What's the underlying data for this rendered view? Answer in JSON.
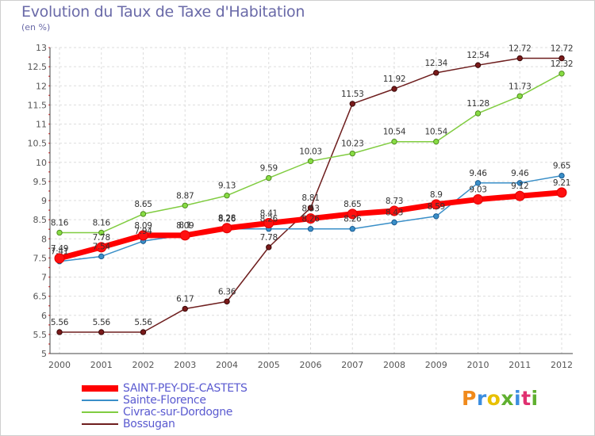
{
  "chart_data": {
    "type": "line",
    "title": "Evolution du Taux de Taxe d'Habitation",
    "ylabel": "(en %)",
    "xlabel": "",
    "x": [
      2000,
      2001,
      2002,
      2003,
      2004,
      2005,
      2006,
      2007,
      2008,
      2009,
      2010,
      2011,
      2012
    ],
    "ylim": [
      5,
      13
    ],
    "yticks": [
      "5",
      "5.5",
      "6",
      "6.5",
      "7",
      "7.5",
      "8",
      "8.5",
      "9",
      "9.5",
      "10",
      "10.5",
      "11",
      "11.5",
      "12",
      "12.5",
      "13"
    ],
    "grid": true,
    "legend": "bottom-left",
    "series": [
      {
        "name": "SAINT-PEY-DE-CASTETS",
        "color": "#ff0000",
        "values": [
          7.49,
          7.78,
          8.09,
          8.09,
          8.28,
          8.41,
          8.53,
          8.65,
          8.73,
          8.9,
          9.03,
          9.12,
          9.21
        ],
        "labels": [
          "7.49",
          "7.78",
          "8.09",
          "8.09",
          "8.28",
          "8.41",
          "8.53",
          "8.65",
          "8.73",
          "8.9",
          "9.03",
          "9.12",
          "9.21"
        ]
      },
      {
        "name": "Sainte-Florence",
        "color": "#3a8fc8",
        "values": [
          7.41,
          7.54,
          7.94,
          8.1,
          8.26,
          8.26,
          8.26,
          8.26,
          8.43,
          8.59,
          9.46,
          9.46,
          9.65
        ],
        "labels": [
          "7.41",
          "7.54",
          "7.94",
          "8.1",
          "8.26",
          "8.26",
          "8.26",
          "8.26",
          "8.43",
          "8.59",
          "9.46",
          "9.46",
          "9.65"
        ]
      },
      {
        "name": "Civrac-sur-Dordogne",
        "color": "#80cc40",
        "values": [
          8.16,
          8.16,
          8.65,
          8.87,
          9.13,
          9.59,
          10.03,
          10.23,
          10.54,
          10.54,
          11.28,
          11.73,
          12.32
        ],
        "labels": [
          "8.16",
          "8.16",
          "8.65",
          "8.87",
          "9.13",
          "9.59",
          "10.03",
          "10.23",
          "10.54",
          "10.54",
          "11.28",
          "11.73",
          "12.32"
        ]
      },
      {
        "name": "Bossugan",
        "color": "#6e1e1e",
        "values": [
          5.56,
          5.56,
          5.56,
          6.17,
          6.36,
          7.78,
          8.81,
          11.53,
          11.92,
          12.34,
          12.54,
          12.72,
          12.72
        ],
        "labels": [
          "5.56",
          "5.56",
          "5.56",
          "6.17",
          "6.36",
          "7.78",
          "8.81",
          "11.53",
          "11.92",
          "12.34",
          "12.54",
          "12.72",
          "12.72"
        ]
      }
    ]
  },
  "logo": {
    "text": "Proxiti",
    "letters": [
      "P",
      "r",
      "o",
      "x",
      "i",
      "t",
      "i"
    ],
    "colors": [
      "#f08a1c",
      "#3c8ee0",
      "#e8c000",
      "#60b030",
      "#3c8ee0",
      "#e03070",
      "#60b030"
    ]
  }
}
